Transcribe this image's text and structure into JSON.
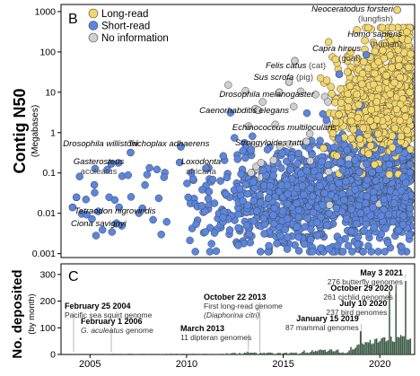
{
  "colors": {
    "long_read": "#f4d76b",
    "short_read": "#5b86e0",
    "no_info": "#cfcfcf",
    "point_stroke": "#444444",
    "axis": "#000000",
    "bar": "#3a5a45"
  },
  "chart_data": [
    {
      "panel_label": "B",
      "type": "scatter",
      "xlabel": "",
      "ylabel": "Contig N50",
      "ylabel_sub": "(Megabases)",
      "yscale": "log",
      "xlim": [
        2003.5,
        2021.8
      ],
      "ylim": [
        0.0008,
        1500
      ],
      "y_ticks": [
        0.001,
        0.01,
        0.1,
        1,
        10,
        100,
        1000
      ],
      "y_tick_labels": [
        "0.001",
        "0.01",
        "0.1",
        "1",
        "10",
        "100",
        "1000"
      ],
      "legend": {
        "placement": "top-left",
        "entries": [
          {
            "key": "long_read",
            "label": "Long-read"
          },
          {
            "key": "short_read",
            "label": "Short-read"
          },
          {
            "key": "no_info",
            "label": "No information"
          }
        ]
      },
      "series": [
        {
          "name": "Long-read",
          "key": "long_read",
          "count_estimate": 1100
        },
        {
          "name": "Short-read",
          "key": "short_read",
          "count_estimate": 1600
        },
        {
          "name": "No information",
          "key": "no_info",
          "count_estimate": 60
        }
      ],
      "labeled_points": [
        {
          "x": 2020.9,
          "y": 1100,
          "series": "long_read",
          "species": "Neoceratodus forsteri",
          "common": "(lungfish)"
        },
        {
          "x": 2019.3,
          "y": 85,
          "series": "short_read",
          "species": "Homo sapiens",
          "common": "(human)"
        },
        {
          "x": 2017.9,
          "y": 28,
          "series": "short_read",
          "species": "Capra hircus",
          "common": "(goat)"
        },
        {
          "x": 2015.6,
          "y": 60,
          "series": "no_info",
          "species": "Felis catus",
          "common": "(cat)"
        },
        {
          "x": 2015.3,
          "y": 18,
          "series": "no_info",
          "species": "Sus scrofa",
          "common": "(pig)"
        },
        {
          "x": 2014.8,
          "y": 10,
          "series": "no_info",
          "species": "Drosophila melanogaster",
          "common": ""
        },
        {
          "x": 2013.7,
          "y": 3.6,
          "series": "no_info",
          "species": "Caenorhabditis elegans",
          "common": ""
        },
        {
          "x": 2016.2,
          "y": 0.6,
          "series": "no_info",
          "species": "Echinococcus multilocularis",
          "common": ""
        },
        {
          "x": 2016.4,
          "y": 0.2,
          "series": "no_info",
          "species": "Strongyloides ratti",
          "common": ""
        },
        {
          "x": 2007.1,
          "y": 0.32,
          "series": "short_read",
          "species": "Drosophila willistoni",
          "common": ""
        },
        {
          "x": 2009.7,
          "y": 0.45,
          "series": "short_read",
          "species": "Trichoplax adhaerens",
          "common": ""
        },
        {
          "x": 2006.1,
          "y": 0.17,
          "series": "short_read",
          "species": "Gasterosteus",
          "common": "aculeatus"
        },
        {
          "x": 2011.0,
          "y": 0.13,
          "series": "short_read",
          "species": "Loxodonta",
          "common": "africana"
        },
        {
          "x": 2004.3,
          "y": 0.025,
          "series": "short_read",
          "species": "Tetraodon nigroviridis",
          "common": ""
        },
        {
          "x": 2004.1,
          "y": 0.014,
          "series": "short_read",
          "species": "Ciona savignyi",
          "common": ""
        }
      ]
    },
    {
      "panel_label": "C",
      "type": "bar",
      "ylabel": "No. deposited",
      "ylabel_sub": "(by month)",
      "xlim": [
        2003.5,
        2021.8
      ],
      "ylim": [
        0,
        340
      ],
      "y_ticks": [
        0,
        100,
        200,
        300
      ],
      "x_ticks": [
        2005,
        2010,
        2015,
        2020
      ],
      "annotations": [
        {
          "date": "February 25 2004",
          "value": 1,
          "text": "Pacific sea squirt genome",
          "italic_text": ""
        },
        {
          "date": "February 1 2006",
          "value": 1,
          "text": " genome",
          "italic_text": "G. aculeatus"
        },
        {
          "date": "March 2013",
          "value": 11,
          "text": "11 dipteran genomes",
          "italic_text": ""
        },
        {
          "date": "October 22 2013",
          "value": 1,
          "text": "First long-read genome",
          "italic_text": "(Diaphorina citri)"
        },
        {
          "date": "January 15 2019",
          "value": 87,
          "text": "87 mammal genomes",
          "italic_text": ""
        },
        {
          "date": "July 10 2020",
          "value": 237,
          "text": "237 bird genomes",
          "italic_text": ""
        },
        {
          "date": "October 29 2020",
          "value": 261,
          "text": "261 cichlid genomes",
          "italic_text": ""
        },
        {
          "date": "May 3 2021",
          "value": 276,
          "text": "276 butterfly genomes",
          "italic_text": ""
        }
      ]
    }
  ]
}
